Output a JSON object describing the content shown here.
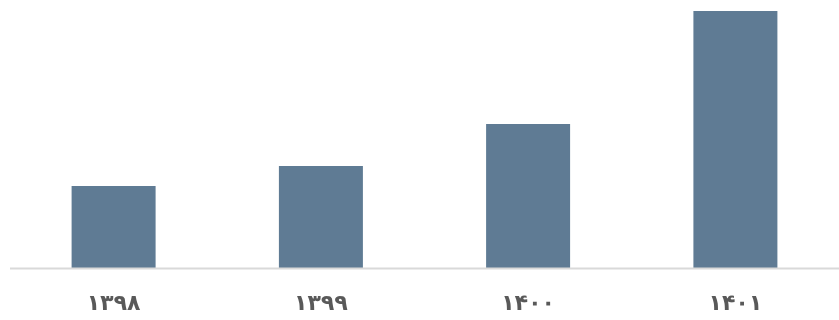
{
  "chart_data": {
    "type": "bar",
    "categories": [
      "۱۳۹۸",
      "۱۳۹۹",
      "۱۴۰۰",
      "۱۴۰۱"
    ],
    "values": [
      82,
      102,
      144,
      257
    ],
    "ylim": [
      0,
      260
    ],
    "grid": false,
    "legend": "none",
    "colors": {
      "bar": "#5f7b94",
      "baseline": "#d9d9d9",
      "tick_label": "#595959"
    }
  }
}
